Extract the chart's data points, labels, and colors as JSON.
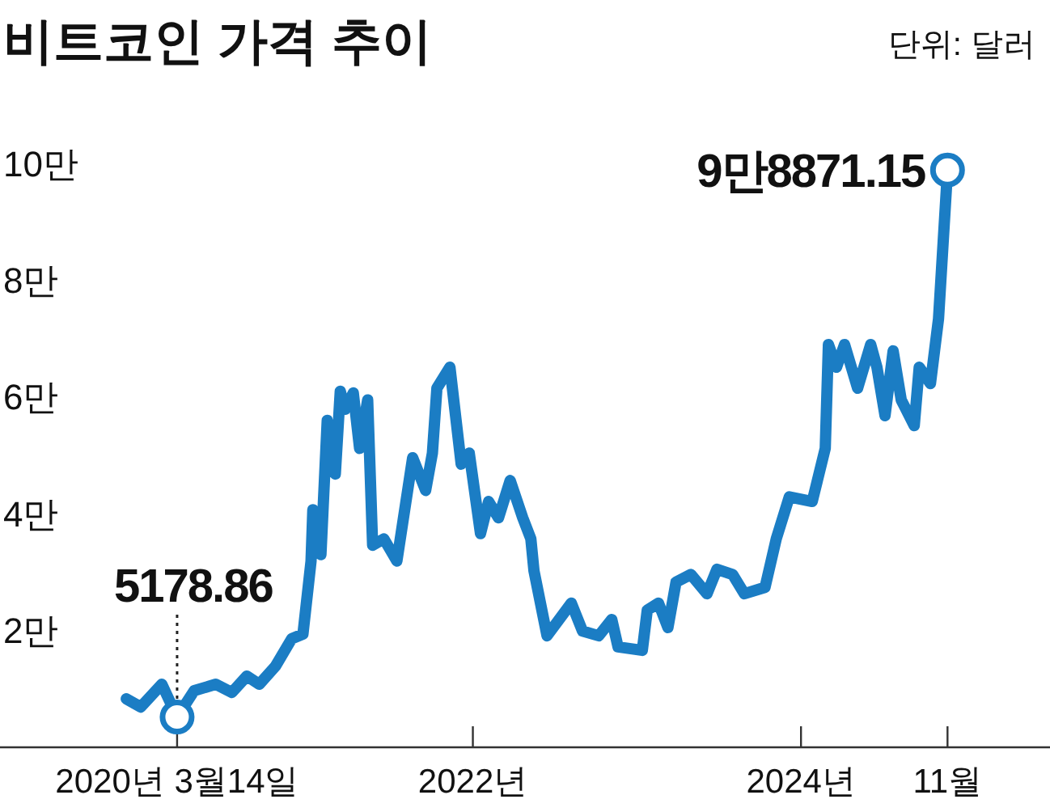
{
  "chart_data": {
    "type": "line",
    "title": "비트코인 가격 추이",
    "subtitle": "단위: 달러",
    "xlim": [
      "2019-02-14",
      "2025-07-08"
    ],
    "xticks": [
      {
        "value": "2020-03-14",
        "label": "2020년 3월14일"
      },
      {
        "value": "2022-01-01",
        "label": "2022년"
      },
      {
        "value": "2024-01-01",
        "label": "2024년"
      },
      {
        "value": "2024-11-22",
        "label": "11월"
      }
    ],
    "ylim": [
      0,
      12.8
    ],
    "yticks": [
      {
        "value": 2,
        "label": "2만"
      },
      {
        "value": 4,
        "label": "4만"
      },
      {
        "value": 6,
        "label": "6만"
      },
      {
        "value": 8,
        "label": "8만"
      },
      {
        "value": 10,
        "label": "10만"
      }
    ],
    "grid": false,
    "marker": "none",
    "line_style": "solid",
    "annotations": [
      {
        "text": "5178.86",
        "x": "2020-03-14",
        "y": 0.517886
      },
      {
        "text": "9만8871.15",
        "x": "2024-11-22",
        "y": 9.887115
      }
    ],
    "series": [
      {
        "color": "#1b7dc4",
        "x": [
          "2019-11-22",
          "2019-12-24",
          "2020-02-09",
          "2020-03-14",
          "2020-04-21",
          "2020-06-08",
          "2020-07-14",
          "2020-08-16",
          "2020-09-13",
          "2020-10-19",
          "2020-11-24",
          "2020-12-19",
          "2021-01-06",
          "2021-01-10",
          "2021-01-28",
          "2021-02-11",
          "2021-03-01",
          "2021-03-12",
          "2021-03-23",
          "2021-04-10",
          "2021-04-24",
          "2021-05-12",
          "2021-05-23",
          "2021-06-17",
          "2021-07-16",
          "2021-08-20",
          "2021-09-18",
          "2021-10-03",
          "2021-10-13",
          "2021-11-11",
          "2021-12-06",
          "2021-12-24",
          "2022-01-18",
          "2022-02-05",
          "2022-02-27",
          "2022-03-25",
          "2022-04-22",
          "2022-05-10",
          "2022-05-17",
          "2022-06-15",
          "2022-08-08",
          "2022-09-02",
          "2022-10-08",
          "2022-11-06",
          "2022-11-20",
          "2023-01-13",
          "2023-01-24",
          "2023-02-18",
          "2023-03-11",
          "2023-03-29",
          "2023-05-01",
          "2023-06-06",
          "2023-06-28",
          "2023-08-02",
          "2023-08-28",
          "2023-10-13",
          "2023-11-07",
          "2023-12-06",
          "2024-01-26",
          "2024-02-24",
          "2024-03-02",
          "2024-03-20",
          "2024-04-07",
          "2024-05-06",
          "2024-06-04",
          "2024-06-18",
          "2024-07-06",
          "2024-07-24",
          "2024-08-11",
          "2024-09-09",
          "2024-09-20",
          "2024-10-15",
          "2024-11-02",
          "2024-11-22"
        ],
        "values": [
          0.83,
          0.69,
          1.08,
          0.517886,
          0.97,
          1.08,
          0.94,
          1.22,
          1.08,
          1.39,
          1.86,
          1.94,
          3.19,
          4.07,
          3.3,
          5.6,
          4.68,
          6.1,
          5.79,
          6.07,
          5.12,
          5.95,
          3.46,
          3.57,
          3.19,
          4.96,
          4.4,
          5.04,
          6.15,
          6.51,
          4.85,
          5.04,
          3.66,
          4.21,
          3.93,
          4.57,
          3.93,
          3.57,
          3.02,
          1.91,
          2.47,
          1.99,
          1.91,
          2.19,
          1.72,
          1.66,
          2.35,
          2.47,
          2.05,
          2.83,
          2.96,
          2.63,
          3.05,
          2.96,
          2.63,
          2.74,
          3.57,
          4.29,
          4.21,
          5.12,
          6.9,
          6.51,
          6.9,
          6.15,
          6.9,
          6.51,
          5.68,
          6.79,
          5.95,
          5.51,
          6.51,
          6.23,
          7.34,
          9.887115
        ]
      }
    ]
  }
}
